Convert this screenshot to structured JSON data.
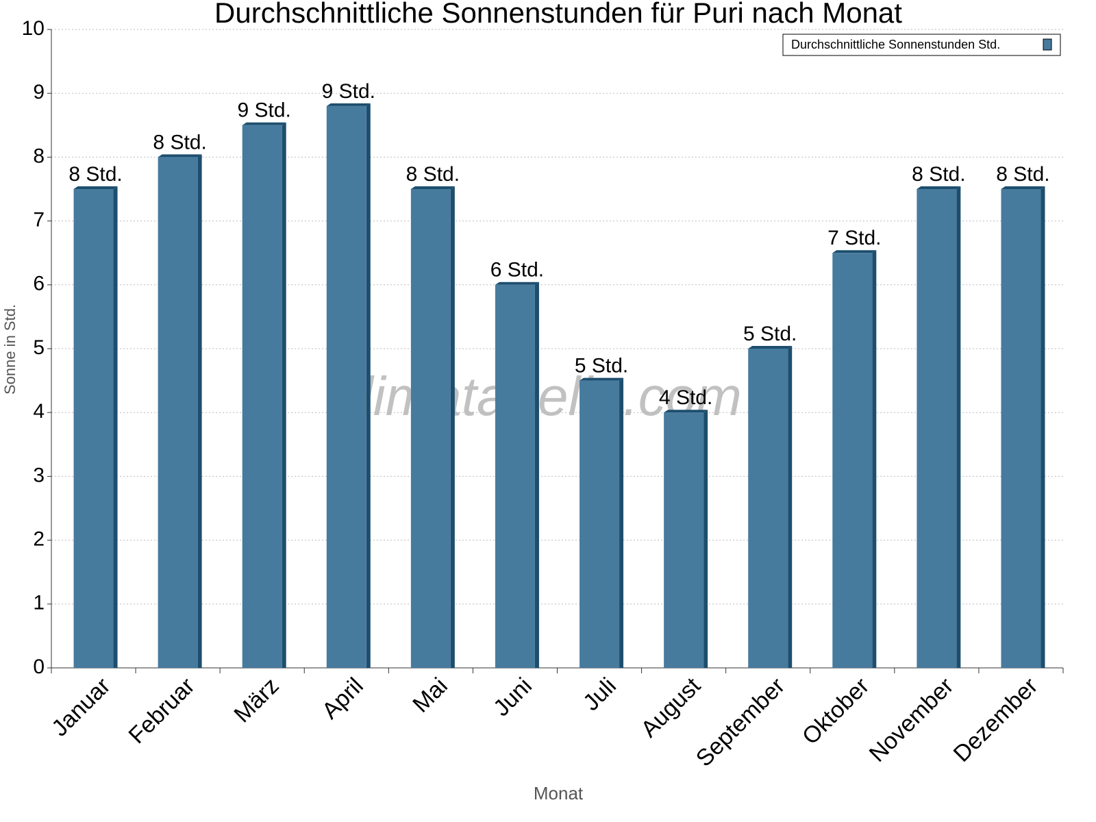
{
  "chart_data": {
    "type": "bar",
    "title": "Durchschnittliche Sonnenstunden für Puri nach Monat",
    "x_label": "Monat",
    "y_label": "Sonne in Std.",
    "watermark": "klimatabelle.com",
    "categories": [
      "Januar",
      "Februar",
      "März",
      "April",
      "Mai",
      "Juni",
      "Juli",
      "August",
      "September",
      "Oktober",
      "November",
      "Dezember"
    ],
    "series": [
      {
        "name": "Durchschnittliche Sonnenstunden Std.",
        "color": "#477b9e",
        "values": [
          7.5,
          8.0,
          8.5,
          8.8,
          7.5,
          6.0,
          4.5,
          4.0,
          5.0,
          6.5,
          7.5,
          7.5
        ],
        "value_labels": [
          "8 Std.",
          "8 Std.",
          "9 Std.",
          "9 Std.",
          "8 Std.",
          "6 Std.",
          "5 Std.",
          "4 Std.",
          "5 Std.",
          "7 Std.",
          "8 Std.",
          "8 Std."
        ]
      }
    ],
    "ylim": [
      0,
      10
    ],
    "yticks": [
      0,
      1,
      2,
      3,
      4,
      5,
      6,
      7,
      8,
      9,
      10
    ],
    "grid": true,
    "legend": "top-right"
  }
}
